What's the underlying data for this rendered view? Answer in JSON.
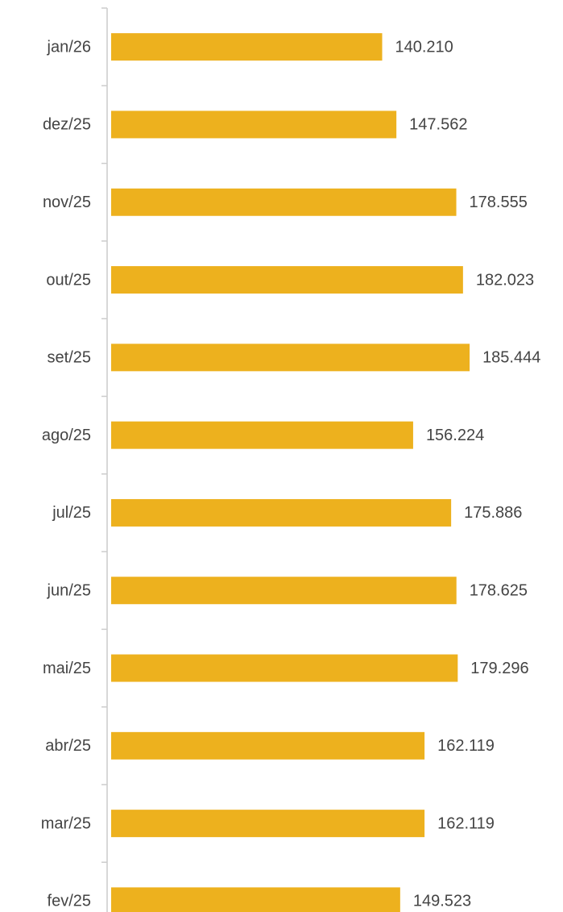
{
  "chart_data": {
    "type": "bar",
    "orientation": "horizontal",
    "categories": [
      "jan/26",
      "dez/25",
      "nov/25",
      "out/25",
      "set/25",
      "ago/25",
      "jul/25",
      "jun/25",
      "mai/25",
      "abr/25",
      "mar/25",
      "fev/25"
    ],
    "values": [
      140210,
      147562,
      178555,
      182023,
      185444,
      156224,
      175886,
      178625,
      179296,
      162119,
      162119,
      149523
    ],
    "value_labels": [
      "140.210",
      "147.562",
      "178.555",
      "182.023",
      "185.444",
      "156.224",
      "175.886",
      "178.625",
      "179.296",
      "162.119",
      "162.119",
      "149.523"
    ],
    "color": "#edb11e",
    "xlim": [
      0,
      200000
    ]
  }
}
